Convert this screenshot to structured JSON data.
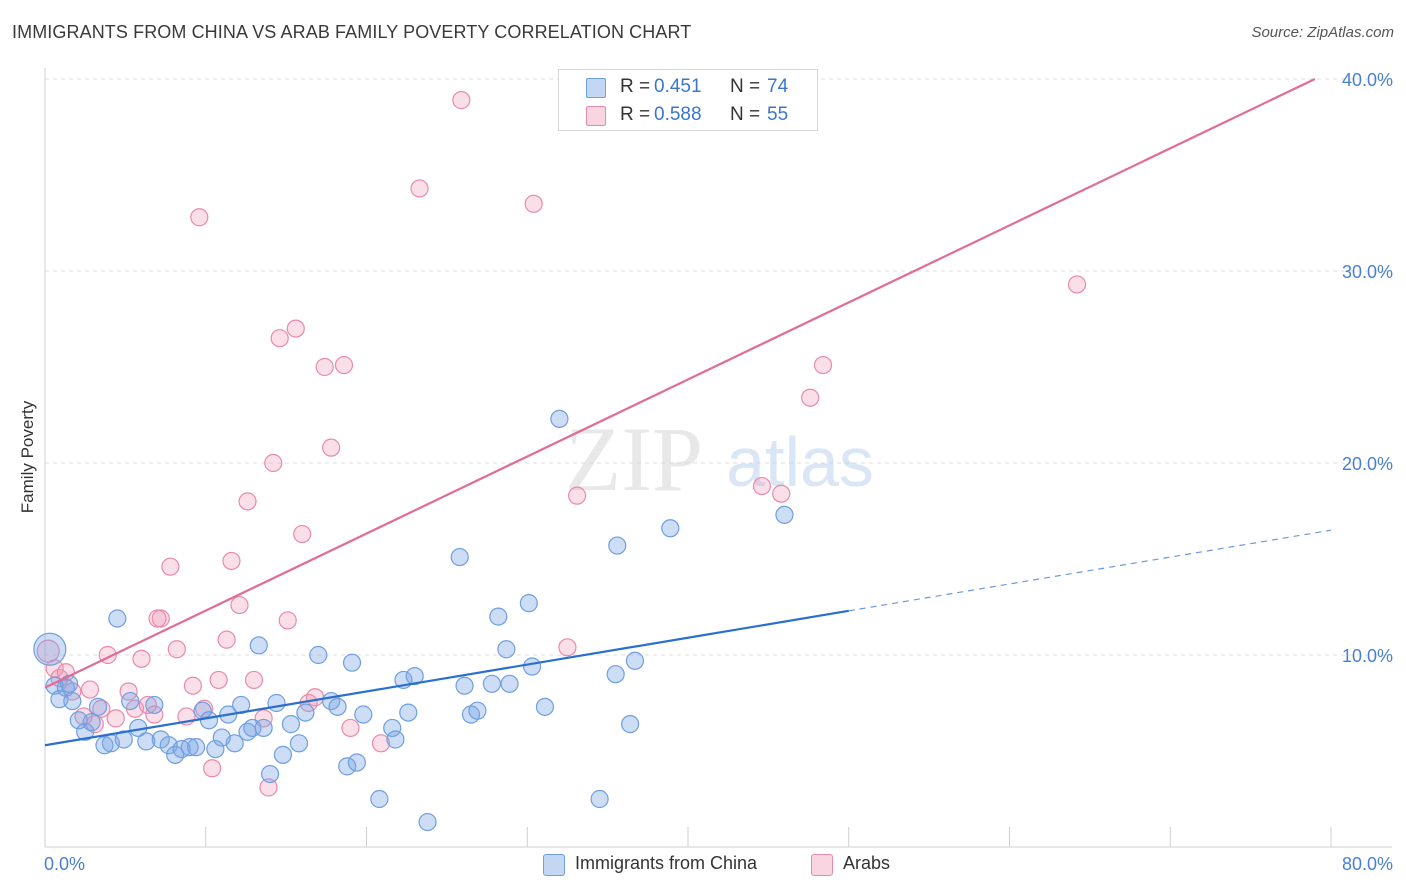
{
  "title": "IMMIGRANTS FROM CHINA VS ARAB FAMILY POVERTY CORRELATION CHART",
  "source": "Source: ZipAtlas.com",
  "watermark": {
    "zip": "ZIP",
    "atlas": "atlas"
  },
  "legend": {
    "series1": {
      "r_label": "R =",
      "r_value": "0.451",
      "n_label": "N =",
      "n_value": "74"
    },
    "series2": {
      "r_label": "R =",
      "r_value": "0.588",
      "n_label": "N =",
      "n_value": "55"
    }
  },
  "bottom_legend": {
    "series1": "Immigrants from China",
    "series2": "Arabs"
  },
  "colors": {
    "china_fill": "rgba(122,166,230,0.38)",
    "china_stroke": "#6f9fe0",
    "china_line": "#2a6fce",
    "arab_fill": "rgba(240,150,180,0.30)",
    "arab_stroke": "#e98aaa",
    "arab_line": "#e06d98",
    "grid": "#dddddd",
    "tick_text": "#4a7fd0"
  },
  "chart_data": {
    "type": "scatter",
    "title": "IMMIGRANTS FROM CHINA VS ARAB FAMILY POVERTY CORRELATION CHART",
    "xlabel": "",
    "ylabel": "Family Poverty",
    "xlim": [
      0,
      80
    ],
    "ylim": [
      0,
      40
    ],
    "x_tick_labels": [
      "0.0%",
      "80.0%"
    ],
    "y_ticks": [
      10,
      20,
      30,
      40
    ],
    "y_tick_labels": [
      "10.0%",
      "20.0%",
      "30.0%",
      "40.0%"
    ],
    "series": [
      {
        "name": "Immigrants from China",
        "r": 0.451,
        "n": 74,
        "trend": {
          "x0": 0,
          "y0": 5.3,
          "x1": 50,
          "y1": 12.3,
          "dash_to_x": 80,
          "dash_to_y": 16.5
        },
        "points": [
          [
            0.3,
            10.3
          ],
          [
            0.6,
            8.4
          ],
          [
            0.9,
            7.7
          ],
          [
            1.3,
            8.3
          ],
          [
            1.5,
            8.5
          ],
          [
            1.7,
            7.6
          ],
          [
            2.1,
            6.6
          ],
          [
            2.5,
            6.0
          ],
          [
            2.9,
            6.5
          ],
          [
            3.3,
            7.3
          ],
          [
            3.7,
            5.3
          ],
          [
            4.1,
            5.4
          ],
          [
            4.5,
            11.9
          ],
          [
            4.9,
            5.6
          ],
          [
            5.3,
            7.6
          ],
          [
            5.8,
            6.2
          ],
          [
            6.3,
            5.5
          ],
          [
            6.8,
            7.4
          ],
          [
            7.2,
            5.6
          ],
          [
            7.7,
            5.3
          ],
          [
            8.1,
            4.8
          ],
          [
            8.5,
            5.1
          ],
          [
            9.0,
            5.2
          ],
          [
            9.4,
            5.2
          ],
          [
            9.8,
            7.1
          ],
          [
            10.2,
            6.6
          ],
          [
            10.6,
            5.1
          ],
          [
            11.0,
            5.7
          ],
          [
            11.4,
            6.9
          ],
          [
            11.8,
            5.4
          ],
          [
            12.2,
            7.4
          ],
          [
            12.6,
            6.0
          ],
          [
            12.9,
            6.2
          ],
          [
            13.3,
            10.5
          ],
          [
            13.6,
            6.2
          ],
          [
            14.0,
            3.8
          ],
          [
            14.4,
            7.5
          ],
          [
            14.8,
            4.8
          ],
          [
            15.3,
            6.4
          ],
          [
            15.8,
            5.4
          ],
          [
            16.2,
            7.0
          ],
          [
            17.0,
            10.0
          ],
          [
            17.8,
            7.6
          ],
          [
            18.2,
            7.3
          ],
          [
            18.8,
            4.2
          ],
          [
            19.1,
            9.6
          ],
          [
            19.4,
            4.4
          ],
          [
            19.8,
            6.9
          ],
          [
            20.8,
            2.5
          ],
          [
            21.6,
            6.2
          ],
          [
            21.8,
            5.6
          ],
          [
            22.3,
            8.7
          ],
          [
            22.6,
            7.0
          ],
          [
            23.0,
            8.9
          ],
          [
            23.8,
            1.3
          ],
          [
            25.8,
            15.1
          ],
          [
            26.1,
            8.4
          ],
          [
            26.5,
            6.9
          ],
          [
            26.9,
            7.1
          ],
          [
            27.8,
            8.5
          ],
          [
            28.2,
            12.0
          ],
          [
            28.7,
            10.3
          ],
          [
            28.9,
            8.5
          ],
          [
            30.1,
            12.7
          ],
          [
            30.3,
            9.4
          ],
          [
            31.1,
            7.3
          ],
          [
            32.0,
            22.3
          ],
          [
            34.5,
            2.5
          ],
          [
            35.6,
            15.7
          ],
          [
            36.4,
            6.4
          ],
          [
            36.7,
            9.7
          ],
          [
            38.9,
            16.6
          ],
          [
            46.0,
            17.3
          ],
          [
            35.5,
            9.0
          ]
        ]
      },
      {
        "name": "Arabs",
        "r": 0.588,
        "n": 55,
        "trend": {
          "x0": 0,
          "y0": 8.3,
          "x1": 79,
          "y1": 40.0
        },
        "points": [
          [
            0.2,
            10.2
          ],
          [
            0.6,
            9.3
          ],
          [
            0.9,
            8.8
          ],
          [
            1.3,
            9.1
          ],
          [
            1.7,
            8.1
          ],
          [
            2.4,
            6.8
          ],
          [
            2.8,
            8.2
          ],
          [
            3.1,
            6.4
          ],
          [
            3.5,
            7.2
          ],
          [
            3.9,
            10.0
          ],
          [
            4.4,
            6.7
          ],
          [
            5.2,
            8.1
          ],
          [
            5.6,
            7.2
          ],
          [
            6.0,
            9.8
          ],
          [
            6.4,
            7.4
          ],
          [
            6.8,
            6.9
          ],
          [
            7.2,
            11.9
          ],
          [
            7.8,
            14.6
          ],
          [
            8.2,
            10.3
          ],
          [
            8.8,
            6.8
          ],
          [
            9.2,
            8.4
          ],
          [
            9.6,
            32.8
          ],
          [
            9.9,
            7.2
          ],
          [
            10.4,
            4.1
          ],
          [
            10.8,
            8.7
          ],
          [
            11.3,
            10.8
          ],
          [
            11.6,
            14.9
          ],
          [
            12.1,
            12.6
          ],
          [
            12.6,
            18.0
          ],
          [
            13.0,
            8.7
          ],
          [
            13.6,
            6.7
          ],
          [
            13.9,
            3.1
          ],
          [
            14.2,
            20.0
          ],
          [
            14.6,
            26.5
          ],
          [
            15.1,
            11.8
          ],
          [
            15.6,
            27.0
          ],
          [
            16.0,
            16.3
          ],
          [
            16.4,
            7.5
          ],
          [
            16.8,
            7.8
          ],
          [
            17.4,
            25.0
          ],
          [
            17.8,
            20.8
          ],
          [
            18.6,
            25.1
          ],
          [
            19.0,
            6.2
          ],
          [
            20.9,
            5.4
          ],
          [
            23.3,
            34.3
          ],
          [
            25.9,
            38.9
          ],
          [
            30.4,
            33.5
          ],
          [
            32.5,
            10.4
          ],
          [
            33.1,
            18.3
          ],
          [
            44.6,
            18.8
          ],
          [
            45.8,
            18.4
          ],
          [
            47.6,
            23.4
          ],
          [
            48.4,
            25.1
          ],
          [
            64.2,
            29.3
          ],
          [
            7.0,
            11.9
          ]
        ]
      }
    ]
  }
}
